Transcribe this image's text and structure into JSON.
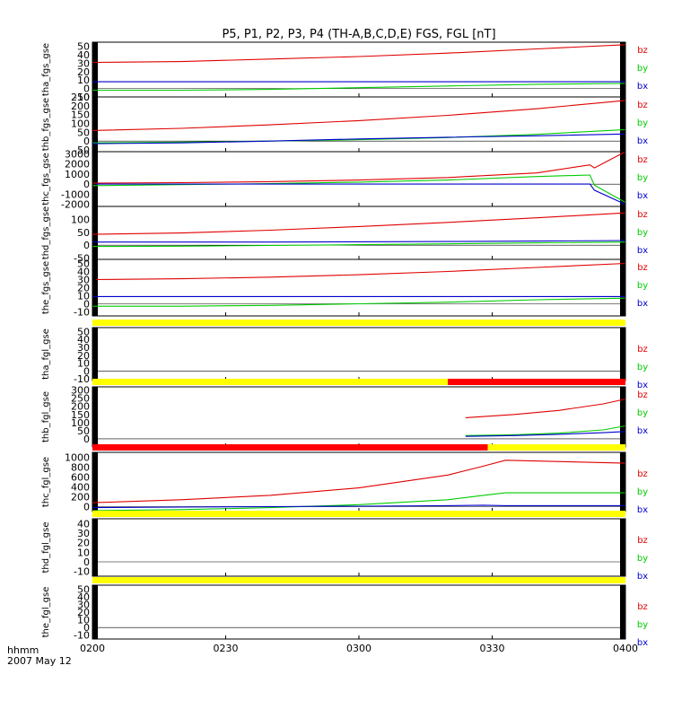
{
  "chart_data": {
    "type": "line",
    "title": "P5, P1, P2, P3, P4 (TH-A,B,C,D,E) FGS, FGL [nT]",
    "x_ticks": [
      "0200",
      "0230",
      "0300",
      "0330",
      "0400"
    ],
    "x_range_minutes": [
      0,
      120
    ],
    "footer_label": "hhmm",
    "date_label": "2007 May 12",
    "legend": [
      "bz",
      "by",
      "bx"
    ],
    "colors": {
      "bz": "#e00000",
      "by": "#00cc00",
      "bx": "#0000cc",
      "bar_yellow": "#ffff00",
      "bar_red": "#ff0000"
    },
    "panels": [
      {
        "ylabel": "tha_fgs_gse",
        "ylim": [
          -10,
          55
        ],
        "yticks": [
          "-10",
          "0",
          "10",
          "20",
          "30",
          "40",
          "50"
        ],
        "series": [
          {
            "name": "bz",
            "x": [
              0,
              20,
              40,
              60,
              80,
              100,
              120
            ],
            "y": [
              31,
              32,
              35,
              38,
              42,
              47,
              52
            ]
          },
          {
            "name": "by",
            "x": [
              0,
              20,
              40,
              60,
              80,
              100,
              120
            ],
            "y": [
              -2,
              -2,
              -1,
              1,
              3,
              5,
              6
            ]
          },
          {
            "name": "bx",
            "x": [
              0,
              20,
              40,
              60,
              80,
              100,
              120
            ],
            "y": [
              8,
              8,
              8,
              8,
              8,
              8,
              8
            ]
          }
        ]
      },
      {
        "ylabel": "thb_fgs_gse",
        "ylim": [
          -60,
          250
        ],
        "yticks": [
          "-50",
          "0",
          "50",
          "100",
          "150",
          "200",
          "250"
        ],
        "series": [
          {
            "name": "bz",
            "x": [
              0,
              20,
              40,
              60,
              80,
              100,
              120
            ],
            "y": [
              60,
              72,
              92,
              116,
              146,
              183,
              230
            ]
          },
          {
            "name": "by",
            "x": [
              0,
              20,
              40,
              60,
              80,
              100,
              120
            ],
            "y": [
              -10,
              -6,
              0,
              8,
              20,
              38,
              65
            ]
          },
          {
            "name": "bx",
            "x": [
              0,
              20,
              40,
              60,
              80,
              100,
              120
            ],
            "y": [
              -15,
              -10,
              0,
              12,
              22,
              30,
              40
            ]
          }
        ]
      },
      {
        "ylabel": "thc_fgs_gse",
        "ylim": [
          -2200,
          3200
        ],
        "yticks": [
          "-2000",
          "-1000",
          "0",
          "1000",
          "2000",
          "3000"
        ],
        "series": [
          {
            "name": "bz",
            "x": [
              0,
              20,
              40,
              60,
              80,
              100,
              112,
              113,
              120
            ],
            "y": [
              100,
              150,
              240,
              400,
              650,
              1100,
              1900,
              1600,
              3200
            ]
          },
          {
            "name": "by",
            "x": [
              0,
              20,
              40,
              60,
              80,
              100,
              112,
              113,
              120
            ],
            "y": [
              -150,
              -50,
              50,
              200,
              400,
              750,
              900,
              -100,
              -1800
            ]
          },
          {
            "name": "bx",
            "x": [
              0,
              20,
              40,
              60,
              80,
              100,
              112,
              113,
              120
            ],
            "y": [
              0,
              0,
              0,
              0,
              0,
              0,
              0,
              -600,
              -2000
            ]
          }
        ]
      },
      {
        "ylabel": "thd_fgs_gse",
        "ylim": [
          -55,
          150
        ],
        "yticks": [
          "-50",
          "0",
          "50",
          "100"
        ],
        "series": [
          {
            "name": "bz",
            "x": [
              0,
              20,
              40,
              60,
              80,
              100,
              120
            ],
            "y": [
              42,
              47,
              58,
              72,
              88,
              106,
              125
            ]
          },
          {
            "name": "by",
            "x": [
              0,
              20,
              40,
              60,
              80,
              100,
              120
            ],
            "y": [
              -5,
              -4,
              -1,
              2,
              5,
              9,
              12
            ]
          },
          {
            "name": "bx",
            "x": [
              0,
              20,
              40,
              60,
              80,
              100,
              120
            ],
            "y": [
              12,
              12,
              12,
              13,
              14,
              16,
              18
            ]
          }
        ]
      },
      {
        "ylabel": "the_fgs_gse",
        "ylim": [
          -15,
          55
        ],
        "yticks": [
          "-10",
          "0",
          "10",
          "20",
          "30",
          "40",
          "50"
        ],
        "series": [
          {
            "name": "bz",
            "x": [
              0,
              20,
              40,
              60,
              80,
              100,
              120
            ],
            "y": [
              30,
              31,
              33,
              36,
              40,
              45,
              50
            ]
          },
          {
            "name": "by",
            "x": [
              0,
              20,
              40,
              60,
              80,
              100,
              120
            ],
            "y": [
              -3,
              -3,
              -2,
              0,
              2,
              5,
              7
            ]
          },
          {
            "name": "bx",
            "x": [
              0,
              20,
              40,
              60,
              80,
              100,
              120
            ],
            "y": [
              9,
              9,
              9,
              9,
              9,
              9,
              9
            ]
          }
        ]
      },
      {
        "ylabel": "tha_fgl_gse",
        "ylim": [
          -12,
          55
        ],
        "yticks": [
          "-10",
          "0",
          "10",
          "20",
          "30",
          "40",
          "50"
        ],
        "bar": [
          {
            "start": 0,
            "end": 120,
            "color": "yellow"
          }
        ],
        "series": []
      },
      {
        "ylabel": "thb_fgl_gse",
        "ylim": [
          -50,
          320
        ],
        "yticks": [
          "0",
          "50",
          "100",
          "150",
          "200",
          "250",
          "300"
        ],
        "bar": [
          {
            "start": 0,
            "end": 80,
            "color": "yellow"
          },
          {
            "start": 80,
            "end": 120,
            "color": "red"
          }
        ],
        "series": [
          {
            "name": "bz",
            "x": [
              84,
              95,
              105,
              115,
              120
            ],
            "y": [
              130,
              150,
              175,
              215,
              245
            ]
          },
          {
            "name": "by",
            "x": [
              84,
              95,
              105,
              115,
              120
            ],
            "y": [
              20,
              25,
              35,
              55,
              80
            ]
          },
          {
            "name": "bx",
            "x": [
              84,
              95,
              105,
              115,
              120
            ],
            "y": [
              15,
              20,
              28,
              38,
              45
            ]
          }
        ]
      },
      {
        "ylabel": "thc_fgl_gse",
        "ylim": [
          -100,
          1100
        ],
        "yticks": [
          "0",
          "200",
          "400",
          "600",
          "800",
          "1000"
        ],
        "bar": [
          {
            "start": 0,
            "end": 89,
            "color": "red"
          },
          {
            "start": 89,
            "end": 120,
            "color": "yellow"
          }
        ],
        "series": [
          {
            "name": "bz",
            "x": [
              0,
              20,
              40,
              60,
              80,
              88,
              93,
              120
            ],
            "y": [
              80,
              140,
              230,
              380,
              640,
              820,
              940,
              880
            ]
          },
          {
            "name": "by",
            "x": [
              0,
              20,
              40,
              60,
              80,
              88,
              93,
              120
            ],
            "y": [
              -80,
              -60,
              -20,
              40,
              140,
              230,
              280,
              280
            ]
          },
          {
            "name": "bx",
            "x": [
              0,
              20,
              40,
              60,
              80,
              88,
              93,
              120
            ],
            "y": [
              -20,
              -10,
              0,
              10,
              20,
              30,
              20,
              20
            ]
          }
        ]
      },
      {
        "ylabel": "thd_fgl_gse",
        "ylim": [
          -15,
          45
        ],
        "yticks": [
          "-10",
          "0",
          "10",
          "20",
          "30",
          "40"
        ],
        "bar": [
          {
            "start": 0,
            "end": 120,
            "color": "yellow"
          }
        ],
        "series": []
      },
      {
        "ylabel": "the_fgl_gse",
        "ylim": [
          -15,
          55
        ],
        "yticks": [
          "-10",
          "0",
          "10",
          "20",
          "30",
          "40",
          "50"
        ],
        "bar": [
          {
            "start": 0,
            "end": 120,
            "color": "yellow"
          }
        ],
        "series": []
      }
    ]
  }
}
